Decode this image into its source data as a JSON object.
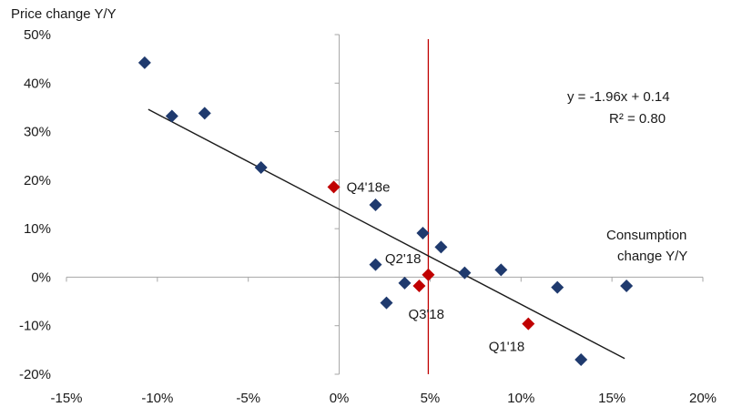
{
  "chart_data": {
    "type": "scatter",
    "title": "",
    "ylabel": "Price  change Y/Y",
    "xlabel_lines": [
      "Consumption",
      "change Y/Y"
    ],
    "xlim": [
      -15,
      20
    ],
    "ylim": [
      -20,
      50
    ],
    "x_ticks": [
      -15,
      -10,
      -5,
      0,
      5,
      10,
      15,
      20
    ],
    "y_ticks": [
      -20,
      -10,
      0,
      10,
      20,
      30,
      40,
      50
    ],
    "x_tick_labels": [
      "-15%",
      "-10%",
      "-5%",
      "0%",
      "5%",
      "10%",
      "15%",
      "20%"
    ],
    "y_tick_labels": [
      "-20%",
      "-10%",
      "0%",
      "10%",
      "20%",
      "30%",
      "40%",
      "50%"
    ],
    "grid": false,
    "colors": {
      "historical": "#1f3a6e",
      "highlighted": "#c00000",
      "reference_line": "#c00000",
      "trend": "#1a1a1a",
      "axis": "#a6a6a6"
    },
    "series": [
      {
        "values": [
          {
            "x": -10.7,
            "y": 44.2
          },
          {
            "x": -9.2,
            "y": 33.2
          },
          {
            "x": -7.4,
            "y": 33.8
          },
          {
            "x": -4.3,
            "y": 22.6
          },
          {
            "x": 2.0,
            "y": 14.9
          },
          {
            "x": 4.6,
            "y": 9.1
          },
          {
            "x": 5.6,
            "y": 6.2
          },
          {
            "x": 2.0,
            "y": 2.6
          },
          {
            "x": 6.9,
            "y": 0.9
          },
          {
            "x": 8.9,
            "y": 1.5
          },
          {
            "x": 3.6,
            "y": -1.2
          },
          {
            "x": 2.6,
            "y": -5.3
          },
          {
            "x": 12.0,
            "y": -2.1
          },
          {
            "x": 15.8,
            "y": -1.8
          },
          {
            "x": 13.3,
            "y": -17.0
          }
        ]
      },
      {
        "values": [
          {
            "x": -0.3,
            "y": 18.6,
            "label": "Q4'18e"
          },
          {
            "x": 4.9,
            "y": 0.5,
            "label": "Q2'18"
          },
          {
            "x": 4.4,
            "y": -1.8,
            "label": "Q3'18"
          },
          {
            "x": 10.4,
            "y": -9.6,
            "label": "Q1'18"
          }
        ]
      }
    ],
    "trendline": {
      "slope": -1.96,
      "intercept": 14.0,
      "x_range": [
        -10.5,
        15.7
      ]
    },
    "reference_line_x": 4.9,
    "annotations": {
      "equation": "y = -1.96x + 0.14",
      "r2": "R² = 0.80"
    }
  }
}
